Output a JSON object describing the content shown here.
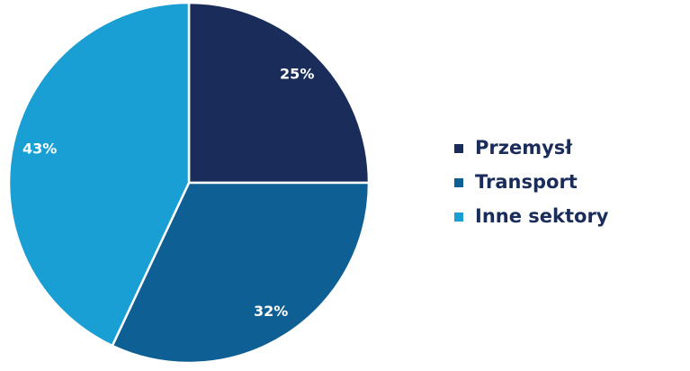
{
  "chart_data": {
    "type": "pie",
    "categories": [
      "Przemysł",
      "Transport",
      "Inne sektory"
    ],
    "values": [
      25,
      32,
      43
    ],
    "value_labels": [
      "25%",
      "32%",
      "43%"
    ],
    "colors": [
      "#1a2d5a",
      "#0e5f93",
      "#1a9fd4"
    ],
    "legend": "right"
  }
}
